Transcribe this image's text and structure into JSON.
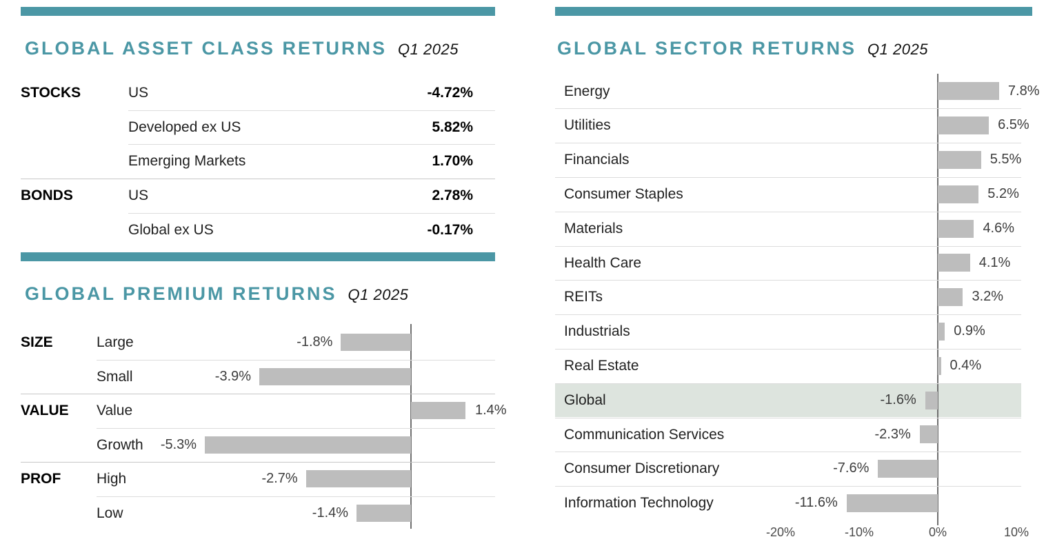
{
  "colors": {
    "accent": "#4b97a5",
    "bar": "#bdbdbd",
    "row_highlight": "#dde4de",
    "separator": "#dcdcdc",
    "group_separator": "#c6c6c6",
    "zero_line": "#6f6f6f"
  },
  "asset_table": {
    "title": "GLOBAL ASSET CLASS RETURNS",
    "period": "Q1 2025",
    "rows": [
      {
        "group": "STOCKS",
        "label": "US",
        "value": "-4.72%"
      },
      {
        "group": "",
        "label": "Developed ex US",
        "value": "5.82%"
      },
      {
        "group": "",
        "label": "Emerging Markets",
        "value": "1.70%"
      },
      {
        "group": "BONDS",
        "label": "US",
        "value": "2.78%"
      },
      {
        "group": "",
        "label": "Global ex US",
        "value": "-0.17%"
      }
    ]
  },
  "chart_data": [
    {
      "type": "bar",
      "orientation": "horizontal",
      "title": "GLOBAL PREMIUM RETURNS",
      "subtitle": "Q1 2025",
      "categories": [
        "Large",
        "Small",
        "Value",
        "Growth",
        "High",
        "Low"
      ],
      "group_labels": [
        "SIZE",
        "",
        "VALUE",
        "",
        "PROF",
        ""
      ],
      "values": [
        -1.8,
        -3.9,
        1.4,
        -5.3,
        -2.7,
        -1.4
      ],
      "value_labels": [
        "-1.8%",
        "-3.9%",
        "1.4%",
        "-5.3%",
        "-2.7%",
        "-1.4%"
      ],
      "xlim": [
        -5.6,
        2.2
      ],
      "zero_line": true,
      "x_tick_labels": [],
      "grid": false,
      "legend": "none"
    },
    {
      "type": "bar",
      "orientation": "horizontal",
      "title": "GLOBAL SECTOR RETURNS",
      "subtitle": "Q1 2025",
      "categories": [
        "Energy",
        "Utilities",
        "Financials",
        "Consumer Staples",
        "Materials",
        "Health Care",
        "REITs",
        "Industrials",
        "Real Estate",
        "Global",
        "Communication Services",
        "Consumer Discretionary",
        "Information Technology"
      ],
      "values": [
        7.8,
        6.5,
        5.5,
        5.2,
        4.6,
        4.1,
        3.2,
        0.9,
        0.4,
        -1.6,
        -2.3,
        -7.6,
        -11.6
      ],
      "value_labels": [
        "7.8%",
        "6.5%",
        "5.5%",
        "5.2%",
        "4.6%",
        "4.1%",
        "3.2%",
        "0.9%",
        "0.4%",
        "-1.6%",
        "-2.3%",
        "-7.6%",
        "-11.6%"
      ],
      "highlighted_category": "Global",
      "x_tick_labels": [
        "-20%",
        "-10%",
        "0%",
        "10%"
      ],
      "x_tick_values": [
        -20,
        -10,
        0,
        10
      ],
      "zero_line": true,
      "grid": false,
      "legend": "none"
    }
  ]
}
